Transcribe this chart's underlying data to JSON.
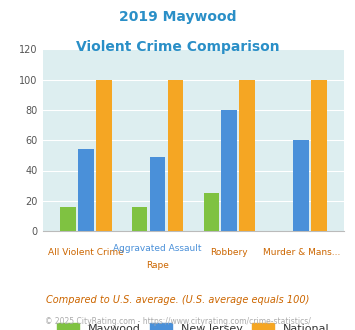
{
  "title_line1": "2019 Maywood",
  "title_line2": "Violent Crime Comparison",
  "categories": [
    "All Violent Crime",
    "Aggravated Assault",
    "Robbery",
    "Murder & Mans..."
  ],
  "categories_sub": [
    "",
    "Rape",
    "",
    ""
  ],
  "maywood": [
    16,
    16,
    25,
    0
  ],
  "new_jersey": [
    54,
    49,
    80,
    60
  ],
  "national": [
    100,
    100,
    100,
    100
  ],
  "color_maywood": "#7fc241",
  "color_nj": "#4a90d9",
  "color_national": "#f5a623",
  "ylim": [
    0,
    120
  ],
  "yticks": [
    0,
    20,
    40,
    60,
    80,
    100,
    120
  ],
  "bg_color": "#ddeef0",
  "title_color": "#2a8fc7",
  "xlabel_color_top": "#4a90d9",
  "xlabel_color_bot": "#cc6600",
  "legend_label_maywood": "Maywood",
  "legend_label_nj": "New Jersey",
  "legend_label_national": "National",
  "footnote1": "Compared to U.S. average. (U.S. average equals 100)",
  "footnote2": "© 2025 CityRating.com - https://www.cityrating.com/crime-statistics/",
  "footnote1_color": "#cc6600",
  "footnote2_color": "#aaaaaa",
  "bar_width": 0.22,
  "bar_gap": 0.03
}
